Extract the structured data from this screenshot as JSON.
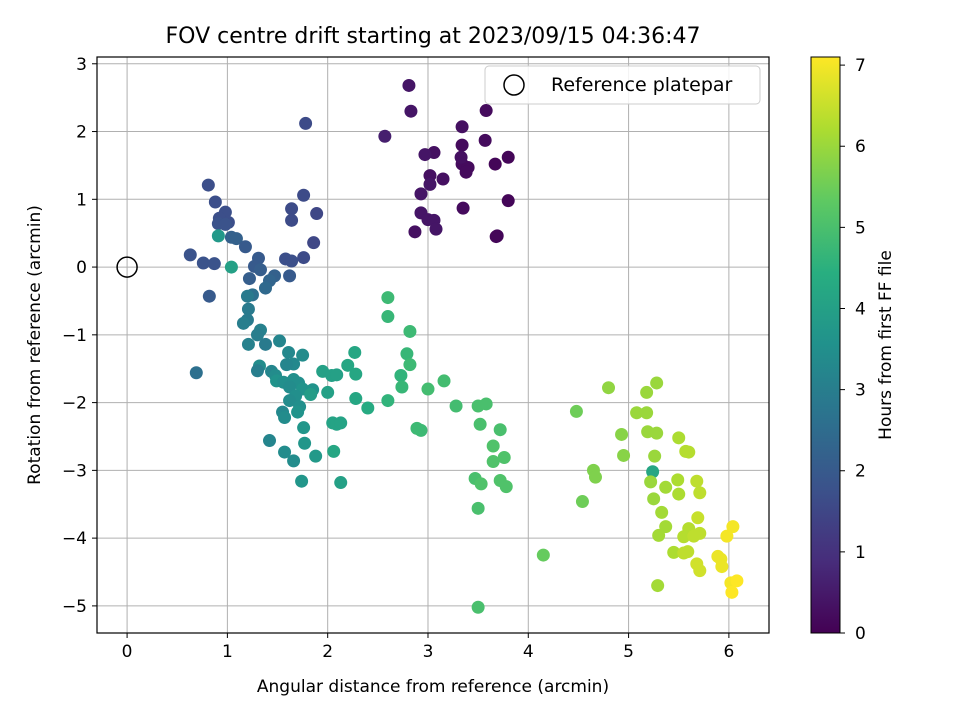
{
  "chart_data": {
    "type": "scatter",
    "title": "FOV centre drift starting at 2023/09/15 04:36:47",
    "xlabel": "Angular distance from reference (arcmin)",
    "ylabel": "Rotation from reference (arcmin)",
    "xlim": [
      -0.3,
      6.4
    ],
    "ylim": [
      -5.4,
      3.1
    ],
    "xticks": [
      0,
      1,
      2,
      3,
      4,
      5,
      6
    ],
    "yticks": [
      -5,
      -4,
      -3,
      -2,
      -1,
      0,
      1,
      2,
      3
    ],
    "grid": true,
    "legend": {
      "position": "top-right",
      "entries": [
        "Reference platepar"
      ]
    },
    "reference_point": {
      "x": 0,
      "y": 0
    },
    "colorbar": {
      "label": "Hours from first FF file",
      "min": 0,
      "max": 7.1,
      "ticks": [
        0,
        1,
        2,
        3,
        4,
        5,
        6,
        7
      ],
      "colormap": "viridis"
    },
    "points": [
      {
        "x": 2.81,
        "y": 2.68,
        "c": 0.4
      },
      {
        "x": 2.83,
        "y": 2.3,
        "c": 0.4
      },
      {
        "x": 3.58,
        "y": 2.31,
        "c": 0.2
      },
      {
        "x": 3.34,
        "y": 2.07,
        "c": 0.3
      },
      {
        "x": 2.57,
        "y": 1.93,
        "c": 0.6
      },
      {
        "x": 3.57,
        "y": 1.87,
        "c": 0.2
      },
      {
        "x": 3.06,
        "y": 1.69,
        "c": 0.3
      },
      {
        "x": 2.97,
        "y": 1.66,
        "c": 0.4
      },
      {
        "x": 3.34,
        "y": 1.8,
        "c": 0.2
      },
      {
        "x": 3.8,
        "y": 1.62,
        "c": 0.1
      },
      {
        "x": 3.34,
        "y": 1.52,
        "c": 0.2
      },
      {
        "x": 3.4,
        "y": 1.47,
        "c": 0.2
      },
      {
        "x": 3.67,
        "y": 1.52,
        "c": 0.1
      },
      {
        "x": 3.33,
        "y": 1.62,
        "c": 0.3
      },
      {
        "x": 3.38,
        "y": 1.4,
        "c": 0.2
      },
      {
        "x": 3.02,
        "y": 1.35,
        "c": 0.3
      },
      {
        "x": 3.15,
        "y": 1.3,
        "c": 0.3
      },
      {
        "x": 3.02,
        "y": 1.22,
        "c": 0.4
      },
      {
        "x": 2.93,
        "y": 1.08,
        "c": 0.4
      },
      {
        "x": 3.8,
        "y": 0.98,
        "c": 0.1
      },
      {
        "x": 2.93,
        "y": 0.8,
        "c": 0.4
      },
      {
        "x": 3.35,
        "y": 0.87,
        "c": 0.2
      },
      {
        "x": 3.0,
        "y": 0.7,
        "c": 0.4
      },
      {
        "x": 3.06,
        "y": 0.69,
        "c": 0.4
      },
      {
        "x": 3.08,
        "y": 0.56,
        "c": 0.4
      },
      {
        "x": 2.87,
        "y": 0.52,
        "c": 0.3
      },
      {
        "x": 3.68,
        "y": 0.45,
        "c": 0.1
      },
      {
        "x": 3.69,
        "y": 0.46,
        "c": 0.1
      },
      {
        "x": 1.78,
        "y": 2.12,
        "c": 1.6
      },
      {
        "x": 0.81,
        "y": 1.21,
        "c": 1.7
      },
      {
        "x": 1.76,
        "y": 1.06,
        "c": 1.6
      },
      {
        "x": 0.88,
        "y": 0.96,
        "c": 1.7
      },
      {
        "x": 1.64,
        "y": 0.86,
        "c": 1.6
      },
      {
        "x": 1.89,
        "y": 0.79,
        "c": 1.5
      },
      {
        "x": 0.98,
        "y": 0.81,
        "c": 1.7
      },
      {
        "x": 0.92,
        "y": 0.72,
        "c": 1.7
      },
      {
        "x": 1.01,
        "y": 0.66,
        "c": 1.7
      },
      {
        "x": 1.64,
        "y": 0.69,
        "c": 1.6
      },
      {
        "x": 0.91,
        "y": 0.64,
        "c": 1.8
      },
      {
        "x": 0.98,
        "y": 0.63,
        "c": 1.8
      },
      {
        "x": 1.04,
        "y": 0.44,
        "c": 2.2
      },
      {
        "x": 1.09,
        "y": 0.42,
        "c": 2.2
      },
      {
        "x": 1.18,
        "y": 0.3,
        "c": 2.0
      },
      {
        "x": 0.91,
        "y": 0.46,
        "c": 3.8
      },
      {
        "x": 1.86,
        "y": 0.36,
        "c": 1.5
      },
      {
        "x": 0.63,
        "y": 0.18,
        "c": 1.8
      },
      {
        "x": 1.31,
        "y": 0.13,
        "c": 2.0
      },
      {
        "x": 1.58,
        "y": 0.12,
        "c": 1.7
      },
      {
        "x": 1.76,
        "y": 0.14,
        "c": 1.6
      },
      {
        "x": 1.64,
        "y": 0.09,
        "c": 1.7
      },
      {
        "x": 0.76,
        "y": 0.06,
        "c": 1.8
      },
      {
        "x": 0.87,
        "y": 0.05,
        "c": 1.8
      },
      {
        "x": 1.04,
        "y": 0.0,
        "c": 4.0
      },
      {
        "x": 1.27,
        "y": 0.01,
        "c": 2.0
      },
      {
        "x": 1.33,
        "y": -0.04,
        "c": 2.1
      },
      {
        "x": 1.47,
        "y": -0.13,
        "c": 2.2
      },
      {
        "x": 1.62,
        "y": -0.13,
        "c": 2.0
      },
      {
        "x": 1.22,
        "y": -0.17,
        "c": 2.1
      },
      {
        "x": 1.42,
        "y": -0.2,
        "c": 2.3
      },
      {
        "x": 1.38,
        "y": -0.31,
        "c": 2.4
      },
      {
        "x": 1.25,
        "y": -0.41,
        "c": 2.6
      },
      {
        "x": 1.2,
        "y": -0.43,
        "c": 2.9
      },
      {
        "x": 0.82,
        "y": -0.43,
        "c": 2.0
      },
      {
        "x": 1.21,
        "y": -0.62,
        "c": 2.9
      },
      {
        "x": 1.2,
        "y": -0.78,
        "c": 2.9
      },
      {
        "x": 1.16,
        "y": -0.83,
        "c": 3.0
      },
      {
        "x": 1.33,
        "y": -0.93,
        "c": 3.1
      },
      {
        "x": 1.3,
        "y": -1.0,
        "c": 3.0
      },
      {
        "x": 1.21,
        "y": -1.14,
        "c": 3.1
      },
      {
        "x": 1.38,
        "y": -1.14,
        "c": 2.9
      },
      {
        "x": 1.52,
        "y": -1.09,
        "c": 3.2
      },
      {
        "x": 1.61,
        "y": -1.26,
        "c": 3.3
      },
      {
        "x": 1.75,
        "y": -1.3,
        "c": 3.4
      },
      {
        "x": 1.66,
        "y": -1.43,
        "c": 3.3
      },
      {
        "x": 1.59,
        "y": -1.44,
        "c": 3.2
      },
      {
        "x": 1.32,
        "y": -1.46,
        "c": 3.4
      },
      {
        "x": 1.3,
        "y": -1.53,
        "c": 3.0
      },
      {
        "x": 0.69,
        "y": -1.56,
        "c": 2.6
      },
      {
        "x": 1.44,
        "y": -1.54,
        "c": 3.2
      },
      {
        "x": 1.48,
        "y": -1.6,
        "c": 3.4
      },
      {
        "x": 1.49,
        "y": -1.68,
        "c": 3.6
      },
      {
        "x": 1.56,
        "y": -1.7,
        "c": 3.5
      },
      {
        "x": 1.66,
        "y": -1.66,
        "c": 3.5
      },
      {
        "x": 1.71,
        "y": -1.71,
        "c": 3.5
      },
      {
        "x": 1.62,
        "y": -1.77,
        "c": 3.4
      },
      {
        "x": 1.75,
        "y": -1.8,
        "c": 3.6
      },
      {
        "x": 1.85,
        "y": -1.81,
        "c": 3.6
      },
      {
        "x": 1.68,
        "y": -1.9,
        "c": 3.5
      },
      {
        "x": 1.62,
        "y": -1.97,
        "c": 3.4
      },
      {
        "x": 1.72,
        "y": -2.06,
        "c": 3.5
      },
      {
        "x": 1.55,
        "y": -2.14,
        "c": 3.3
      },
      {
        "x": 1.57,
        "y": -2.22,
        "c": 3.4
      },
      {
        "x": 1.7,
        "y": -2.14,
        "c": 3.6
      },
      {
        "x": 1.76,
        "y": -2.37,
        "c": 3.7
      },
      {
        "x": 1.42,
        "y": -2.56,
        "c": 3.2
      },
      {
        "x": 1.77,
        "y": -2.6,
        "c": 3.7
      },
      {
        "x": 1.57,
        "y": -2.73,
        "c": 3.4
      },
      {
        "x": 1.66,
        "y": -2.86,
        "c": 3.4
      },
      {
        "x": 1.88,
        "y": -2.79,
        "c": 3.8
      },
      {
        "x": 1.74,
        "y": -3.16,
        "c": 3.7
      },
      {
        "x": 2.13,
        "y": -3.18,
        "c": 4.0
      },
      {
        "x": 1.95,
        "y": -1.54,
        "c": 4.0
      },
      {
        "x": 2.04,
        "y": -1.6,
        "c": 4.0
      },
      {
        "x": 2.09,
        "y": -1.59,
        "c": 4.0
      },
      {
        "x": 2.2,
        "y": -1.45,
        "c": 4.2
      },
      {
        "x": 2.27,
        "y": -1.26,
        "c": 4.2
      },
      {
        "x": 2.28,
        "y": -1.58,
        "c": 4.2
      },
      {
        "x": 2.0,
        "y": -1.85,
        "c": 4.0
      },
      {
        "x": 1.83,
        "y": -1.88,
        "c": 3.9
      },
      {
        "x": 2.28,
        "y": -1.94,
        "c": 4.2
      },
      {
        "x": 2.4,
        "y": -2.08,
        "c": 4.3
      },
      {
        "x": 2.05,
        "y": -2.3,
        "c": 4.1
      },
      {
        "x": 2.09,
        "y": -2.32,
        "c": 4.1
      },
      {
        "x": 2.13,
        "y": -2.3,
        "c": 4.1
      },
      {
        "x": 2.06,
        "y": -2.72,
        "c": 4.2
      },
      {
        "x": 2.6,
        "y": -0.45,
        "c": 4.8
      },
      {
        "x": 2.6,
        "y": -0.73,
        "c": 4.7
      },
      {
        "x": 2.82,
        "y": -0.95,
        "c": 4.8
      },
      {
        "x": 2.79,
        "y": -1.28,
        "c": 4.7
      },
      {
        "x": 2.82,
        "y": -1.44,
        "c": 4.8
      },
      {
        "x": 2.73,
        "y": -1.6,
        "c": 4.6
      },
      {
        "x": 2.74,
        "y": -1.77,
        "c": 4.7
      },
      {
        "x": 2.6,
        "y": -1.97,
        "c": 4.6
      },
      {
        "x": 3.0,
        "y": -1.8,
        "c": 4.9
      },
      {
        "x": 3.16,
        "y": -1.68,
        "c": 4.9
      },
      {
        "x": 2.89,
        "y": -2.38,
        "c": 4.8
      },
      {
        "x": 2.93,
        "y": -2.41,
        "c": 4.8
      },
      {
        "x": 3.28,
        "y": -2.05,
        "c": 4.9
      },
      {
        "x": 3.5,
        "y": -2.05,
        "c": 5.0
      },
      {
        "x": 3.58,
        "y": -2.02,
        "c": 5.0
      },
      {
        "x": 3.52,
        "y": -2.32,
        "c": 5.0
      },
      {
        "x": 3.72,
        "y": -2.4,
        "c": 5.0
      },
      {
        "x": 3.65,
        "y": -2.64,
        "c": 5.1
      },
      {
        "x": 3.65,
        "y": -2.87,
        "c": 5.1
      },
      {
        "x": 3.76,
        "y": -2.81,
        "c": 5.1
      },
      {
        "x": 3.47,
        "y": -3.12,
        "c": 5.0
      },
      {
        "x": 3.53,
        "y": -3.2,
        "c": 5.1
      },
      {
        "x": 3.72,
        "y": -3.15,
        "c": 5.1
      },
      {
        "x": 3.78,
        "y": -3.24,
        "c": 5.1
      },
      {
        "x": 3.5,
        "y": -3.56,
        "c": 5.0
      },
      {
        "x": 3.5,
        "y": -5.02,
        "c": 5.0
      },
      {
        "x": 4.15,
        "y": -4.25,
        "c": 5.4
      },
      {
        "x": 4.48,
        "y": -2.13,
        "c": 5.5
      },
      {
        "x": 4.8,
        "y": -1.78,
        "c": 5.9
      },
      {
        "x": 4.54,
        "y": -3.46,
        "c": 5.5
      },
      {
        "x": 4.65,
        "y": -3.0,
        "c": 5.7
      },
      {
        "x": 4.67,
        "y": -3.1,
        "c": 5.7
      },
      {
        "x": 4.93,
        "y": -2.47,
        "c": 5.8
      },
      {
        "x": 4.95,
        "y": -2.78,
        "c": 5.8
      },
      {
        "x": 5.08,
        "y": -2.15,
        "c": 6.0
      },
      {
        "x": 5.18,
        "y": -2.15,
        "c": 6.0
      },
      {
        "x": 5.18,
        "y": -1.85,
        "c": 6.0
      },
      {
        "x": 5.28,
        "y": -1.71,
        "c": 6.0
      },
      {
        "x": 5.19,
        "y": -2.43,
        "c": 6.0
      },
      {
        "x": 5.28,
        "y": -2.45,
        "c": 6.0
      },
      {
        "x": 5.24,
        "y": -3.02,
        "c": 4.2
      },
      {
        "x": 5.26,
        "y": -2.79,
        "c": 6.0
      },
      {
        "x": 5.22,
        "y": -3.17,
        "c": 6.0
      },
      {
        "x": 5.37,
        "y": -3.25,
        "c": 6.1
      },
      {
        "x": 5.25,
        "y": -3.42,
        "c": 6.0
      },
      {
        "x": 5.33,
        "y": -3.62,
        "c": 6.1
      },
      {
        "x": 5.37,
        "y": -3.83,
        "c": 6.1
      },
      {
        "x": 5.3,
        "y": -3.96,
        "c": 6.1
      },
      {
        "x": 5.45,
        "y": -4.21,
        "c": 6.2
      },
      {
        "x": 5.29,
        "y": -4.7,
        "c": 6.1
      },
      {
        "x": 5.5,
        "y": -2.52,
        "c": 6.2
      },
      {
        "x": 5.57,
        "y": -2.72,
        "c": 6.3
      },
      {
        "x": 5.6,
        "y": -2.73,
        "c": 6.3
      },
      {
        "x": 5.49,
        "y": -3.14,
        "c": 6.2
      },
      {
        "x": 5.5,
        "y": -3.35,
        "c": 6.2
      },
      {
        "x": 5.68,
        "y": -3.16,
        "c": 6.4
      },
      {
        "x": 5.71,
        "y": -3.33,
        "c": 6.4
      },
      {
        "x": 5.6,
        "y": -3.86,
        "c": 6.3
      },
      {
        "x": 5.55,
        "y": -3.98,
        "c": 6.3
      },
      {
        "x": 5.65,
        "y": -3.97,
        "c": 6.4
      },
      {
        "x": 5.71,
        "y": -3.93,
        "c": 6.4
      },
      {
        "x": 5.69,
        "y": -3.7,
        "c": 6.5
      },
      {
        "x": 5.59,
        "y": -4.2,
        "c": 6.4
      },
      {
        "x": 5.55,
        "y": -4.22,
        "c": 6.4
      },
      {
        "x": 5.68,
        "y": -4.38,
        "c": 6.6
      },
      {
        "x": 5.71,
        "y": -4.48,
        "c": 6.6
      },
      {
        "x": 5.89,
        "y": -4.27,
        "c": 6.9
      },
      {
        "x": 5.92,
        "y": -4.31,
        "c": 6.9
      },
      {
        "x": 5.93,
        "y": -4.42,
        "c": 6.9
      },
      {
        "x": 5.98,
        "y": -3.97,
        "c": 7.0
      },
      {
        "x": 6.04,
        "y": -3.83,
        "c": 7.0
      },
      {
        "x": 6.02,
        "y": -4.66,
        "c": 7.0
      },
      {
        "x": 6.08,
        "y": -4.63,
        "c": 7.1
      },
      {
        "x": 6.03,
        "y": -4.8,
        "c": 7.1
      }
    ]
  }
}
